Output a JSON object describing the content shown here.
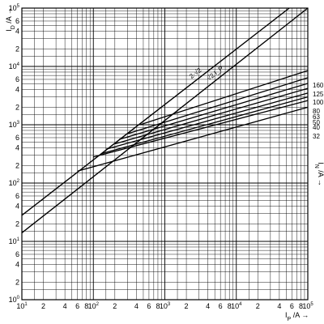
{
  "chart_data": {
    "type": "line",
    "x_scale": "log",
    "y_scale": "log",
    "xlim": [
      10,
      100000
    ],
    "ylim": [
      1,
      100000
    ],
    "xlabel": "I_P / A",
    "ylabel": "I_D / A",
    "x_label_main": "I",
    "x_label_sub": "P",
    "x_label_rest": " /A",
    "y_label_main": "I",
    "y_label_sub": "D",
    "y_label_rest": " /A",
    "right_axis_label": "I_N /A",
    "right_label_main": "I",
    "right_label_sub": "N",
    "right_label_rest": " /A",
    "grid": true,
    "x_ticks": [
      {
        "value": 10,
        "label_base": "10",
        "label_exp": "1"
      },
      {
        "value": 20,
        "label": "2"
      },
      {
        "value": 40,
        "label": "4"
      },
      {
        "value": 60,
        "label": "6"
      },
      {
        "value": 80,
        "label": "8"
      },
      {
        "value": 100,
        "label_base": "10",
        "label_exp": "2"
      },
      {
        "value": 200,
        "label": "2"
      },
      {
        "value": 400,
        "label": "4"
      },
      {
        "value": 600,
        "label": "6"
      },
      {
        "value": 800,
        "label": "8"
      },
      {
        "value": 1000,
        "label_base": "10",
        "label_exp": "3"
      },
      {
        "value": 2000,
        "label": "2"
      },
      {
        "value": 4000,
        "label": "4"
      },
      {
        "value": 6000,
        "label": "6"
      },
      {
        "value": 8000,
        "label": "8"
      },
      {
        "value": 10000,
        "label_base": "10",
        "label_exp": "4"
      },
      {
        "value": 20000,
        "label": "2"
      },
      {
        "value": 40000,
        "label": "4"
      },
      {
        "value": 60000,
        "label": "6"
      },
      {
        "value": 80000,
        "label": "8"
      },
      {
        "value": 100000,
        "label_base": "10",
        "label_exp": "5"
      }
    ],
    "y_ticks": [
      {
        "value": 1,
        "label_base": "10",
        "label_exp": "0"
      },
      {
        "value": 2,
        "label": "2"
      },
      {
        "value": 4,
        "label": "4"
      },
      {
        "value": 6,
        "label": "6"
      },
      {
        "value": 10,
        "label_base": "10",
        "label_exp": "1"
      },
      {
        "value": 20,
        "label": "2"
      },
      {
        "value": 40,
        "label": "4"
      },
      {
        "value": 60,
        "label": "6"
      },
      {
        "value": 100,
        "label_base": "10",
        "label_exp": "2"
      },
      {
        "value": 200,
        "label": "2"
      },
      {
        "value": 400,
        "label": "4"
      },
      {
        "value": 600,
        "label": "6"
      },
      {
        "value": 1000,
        "label_base": "10",
        "label_exp": "3"
      },
      {
        "value": 2000,
        "label": "2"
      },
      {
        "value": 4000,
        "label": "4"
      },
      {
        "value": 6000,
        "label": "6"
      },
      {
        "value": 10000,
        "label_base": "10",
        "label_exp": "4"
      },
      {
        "value": 20000,
        "label": "2"
      },
      {
        "value": 40000,
        "label": "4"
      },
      {
        "value": 60000,
        "label": "6"
      },
      {
        "value": 100000,
        "label_base": "10",
        "label_exp": "5"
      }
    ],
    "reference_lines": [
      {
        "name": "2·√2 I_P",
        "label": "2·√2",
        "points": [
          [
            10,
            28
          ],
          [
            55000,
            100000
          ]
        ]
      },
      {
        "name": "√2 I_P",
        "label": "√2 I_P",
        "points": [
          [
            10,
            14
          ],
          [
            100000,
            100000
          ]
        ]
      }
    ],
    "series": [
      {
        "name": "160",
        "points": [
          [
            450,
            1000
          ],
          [
            100000,
            8500
          ]
        ]
      },
      {
        "name": "125",
        "points": [
          [
            300,
            700
          ],
          [
            100000,
            6400
          ]
        ]
      },
      {
        "name": "100",
        "points": [
          [
            230,
            560
          ],
          [
            100000,
            5100
          ]
        ]
      },
      {
        "name": "80",
        "points": [
          [
            200,
            470
          ],
          [
            100000,
            4200
          ]
        ]
      },
      {
        "name": "63",
        "points": [
          [
            150,
            380
          ],
          [
            100000,
            3500
          ]
        ]
      },
      {
        "name": "50",
        "points": [
          [
            130,
            320
          ],
          [
            100000,
            3000
          ]
        ]
      },
      {
        "name": "40",
        "points": [
          [
            100,
            280
          ],
          [
            100000,
            2600
          ]
        ]
      },
      {
        "name": "32",
        "points": [
          [
            60,
            160
          ],
          [
            100000,
            2000
          ]
        ]
      }
    ]
  }
}
